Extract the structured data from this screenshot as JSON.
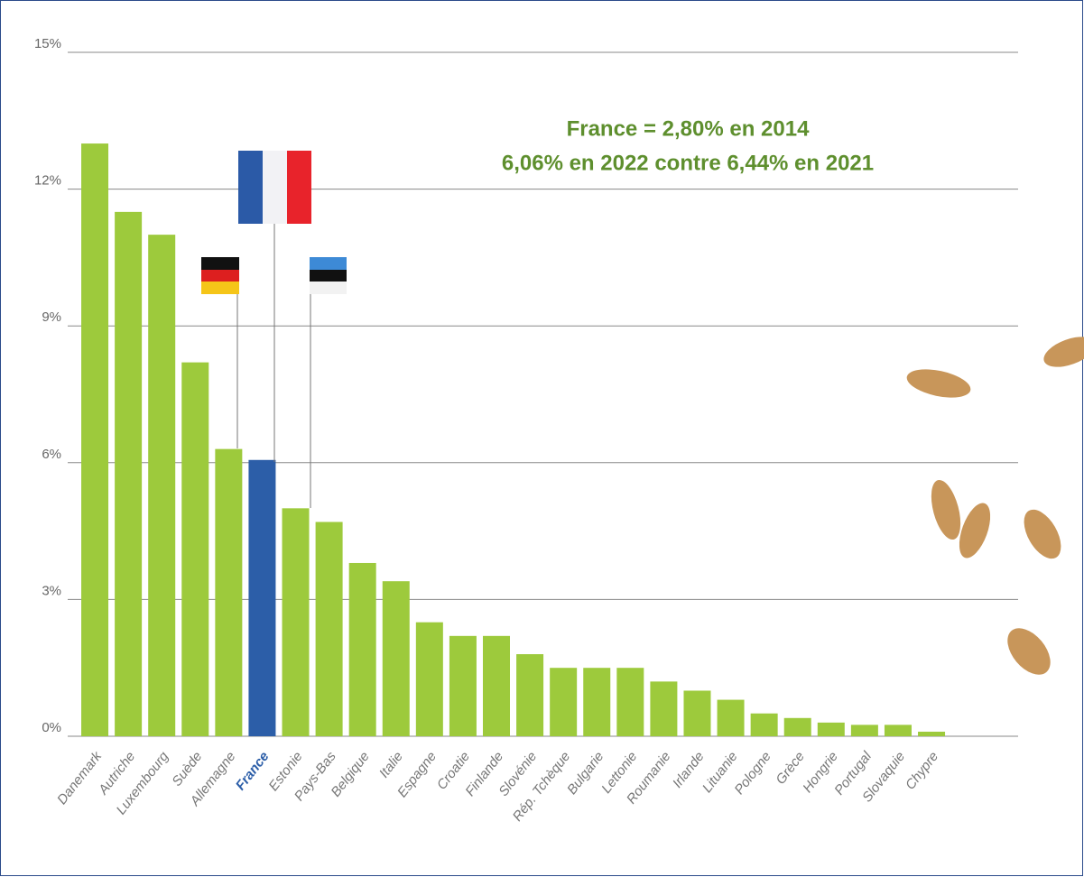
{
  "chart_data": {
    "type": "bar",
    "annotations": [
      "France = 2,80% en 2014",
      "6,06% en 2022 contre 6,44% en 2021"
    ],
    "categories": [
      "Danemark",
      "Autriche",
      "Luxembourg",
      "Suède",
      "Allemagne",
      "France",
      "Estonie",
      "Pays-Bas",
      "Belgique",
      "Italie",
      "Espagne",
      "Croatie",
      "Finlande",
      "Slovénie",
      "Rép. Tchèque",
      "Bulgarie",
      "Lettonie",
      "Roumanie",
      "Irlande",
      "Lituanie",
      "Pologne",
      "Grèce",
      "Hongrie",
      "Portugal",
      "Slovaquie",
      "Chypre"
    ],
    "values": [
      13.0,
      11.5,
      11.0,
      8.2,
      6.3,
      6.06,
      5.0,
      4.7,
      3.8,
      3.4,
      2.5,
      2.2,
      2.2,
      1.8,
      1.5,
      1.5,
      1.5,
      1.2,
      1.0,
      0.8,
      0.5,
      0.4,
      0.3,
      0.25,
      0.25,
      0.1
    ],
    "colors": [
      "#9dca3c",
      "#9dca3c",
      "#9dca3c",
      "#9dca3c",
      "#9dca3c",
      "#2c5ea8",
      "#9dca3c",
      "#9dca3c",
      "#9dca3c",
      "#9dca3c",
      "#9dca3c",
      "#9dca3c",
      "#9dca3c",
      "#9dca3c",
      "#9dca3c",
      "#9dca3c",
      "#9dca3c",
      "#9dca3c",
      "#9dca3c",
      "#9dca3c",
      "#9dca3c",
      "#9dca3c",
      "#9dca3c",
      "#9dca3c",
      "#9dca3c",
      "#9dca3c"
    ],
    "ylim": [
      0,
      15
    ],
    "yticks": [
      {
        "value": 0,
        "label": "0%"
      },
      {
        "value": 3,
        "label": "3%"
      },
      {
        "value": 6,
        "label": "6%"
      },
      {
        "value": 9,
        "label": "9%"
      },
      {
        "value": 12,
        "label": "12%"
      },
      {
        "value": 15,
        "label": "15%"
      }
    ],
    "grid": true
  }
}
